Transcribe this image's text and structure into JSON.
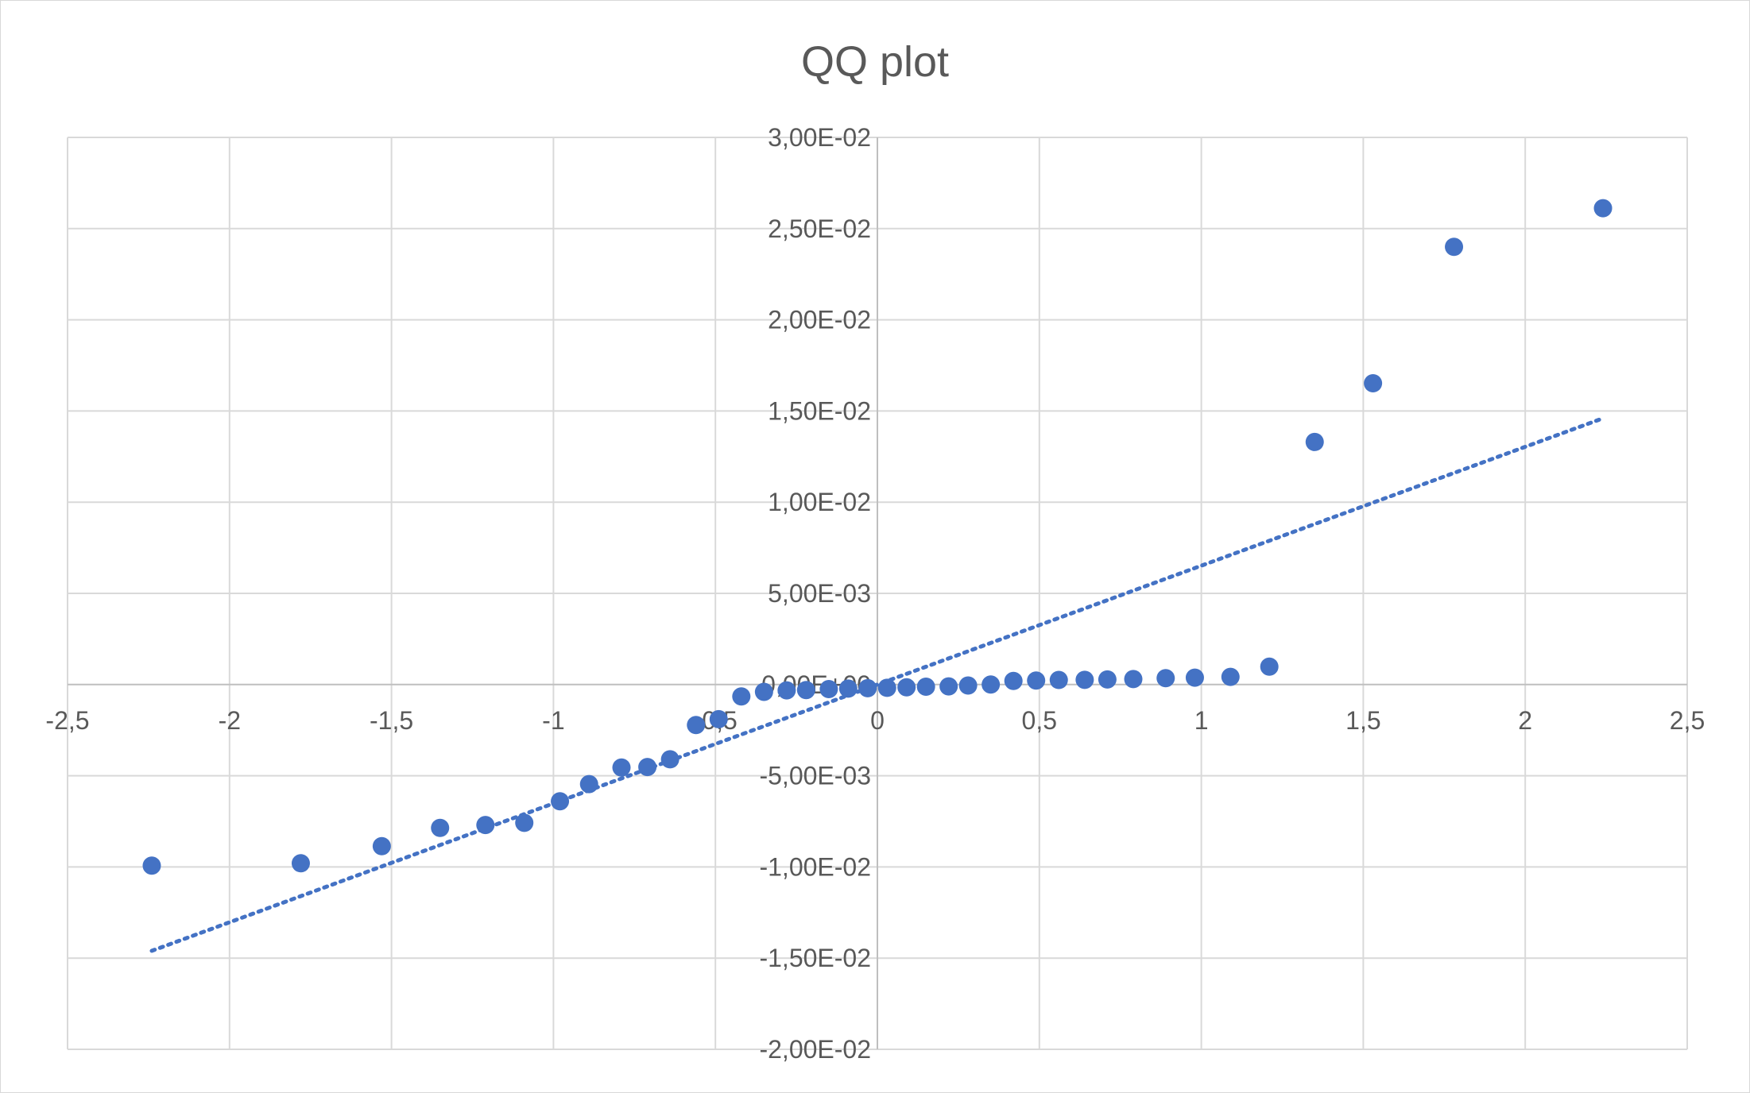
{
  "chart_data": {
    "type": "scatter",
    "title": "QQ plot",
    "xlabel": "",
    "ylabel": "",
    "xlim": [
      -2.5,
      2.5
    ],
    "ylim": [
      -0.02,
      0.03
    ],
    "x_ticks": [
      -2.5,
      -2,
      -1.5,
      -1,
      -0.5,
      0,
      0.5,
      1,
      1.5,
      2,
      2.5
    ],
    "x_tick_labels": [
      "-2,5",
      "-2",
      "-1,5",
      "-1",
      "-0,5",
      "0",
      "0,5",
      "1",
      "1,5",
      "2",
      "2,5"
    ],
    "y_ticks": [
      0.03,
      0.025,
      0.02,
      0.015,
      0.01,
      0.005,
      0,
      -0.005,
      -0.01,
      -0.015,
      -0.02
    ],
    "y_tick_labels": [
      "3,00E-02",
      "2,50E-02",
      "2,00E-02",
      "1,50E-02",
      "1,00E-02",
      "5,00E-03",
      "0,00E+00",
      "-5,00E-03",
      "-1,00E-02",
      "-1,50E-02",
      "-2,00E-02"
    ],
    "grid": true,
    "legend": "none",
    "series": [
      {
        "color": "#4472c4",
        "points": [
          {
            "x": -2.24,
            "y": -0.00993
          },
          {
            "x": -1.78,
            "y": -0.0098
          },
          {
            "x": -1.53,
            "y": -0.00886
          },
          {
            "x": -1.35,
            "y": -0.00786
          },
          {
            "x": -1.21,
            "y": -0.0077
          },
          {
            "x": -1.09,
            "y": -0.00758
          },
          {
            "x": -0.98,
            "y": -0.0064
          },
          {
            "x": -0.89,
            "y": -0.00546
          },
          {
            "x": -0.79,
            "y": -0.00455
          },
          {
            "x": -0.71,
            "y": -0.00452
          },
          {
            "x": -0.64,
            "y": -0.0041
          },
          {
            "x": -0.56,
            "y": -0.00222
          },
          {
            "x": -0.49,
            "y": -0.0019
          },
          {
            "x": -0.42,
            "y": -0.00065
          },
          {
            "x": -0.35,
            "y": -0.0004
          },
          {
            "x": -0.28,
            "y": -0.00032
          },
          {
            "x": -0.22,
            "y": -0.0003
          },
          {
            "x": -0.15,
            "y": -0.00025
          },
          {
            "x": -0.09,
            "y": -0.00022
          },
          {
            "x": -0.03,
            "y": -0.0002
          },
          {
            "x": 0.03,
            "y": -0.00018
          },
          {
            "x": 0.09,
            "y": -0.00015
          },
          {
            "x": 0.15,
            "y": -0.00012
          },
          {
            "x": 0.22,
            "y": -0.0001
          },
          {
            "x": 0.28,
            "y": -5e-05
          },
          {
            "x": 0.35,
            "y": 0.0
          },
          {
            "x": 0.42,
            "y": 0.0002
          },
          {
            "x": 0.49,
            "y": 0.00022
          },
          {
            "x": 0.56,
            "y": 0.00025
          },
          {
            "x": 0.64,
            "y": 0.00026
          },
          {
            "x": 0.71,
            "y": 0.00028
          },
          {
            "x": 0.79,
            "y": 0.0003
          },
          {
            "x": 0.89,
            "y": 0.00035
          },
          {
            "x": 0.98,
            "y": 0.00038
          },
          {
            "x": 1.09,
            "y": 0.00042
          },
          {
            "x": 1.21,
            "y": 0.00098
          },
          {
            "x": 1.35,
            "y": 0.0133
          },
          {
            "x": 1.53,
            "y": 0.01652
          },
          {
            "x": 1.78,
            "y": 0.024
          },
          {
            "x": 2.24,
            "y": 0.02612
          }
        ]
      }
    ],
    "trendline": {
      "style": "dotted",
      "color": "#4472c4",
      "points": [
        {
          "x": -2.24,
          "y": -0.0146
        },
        {
          "x": 2.24,
          "y": 0.0146
        }
      ]
    }
  }
}
